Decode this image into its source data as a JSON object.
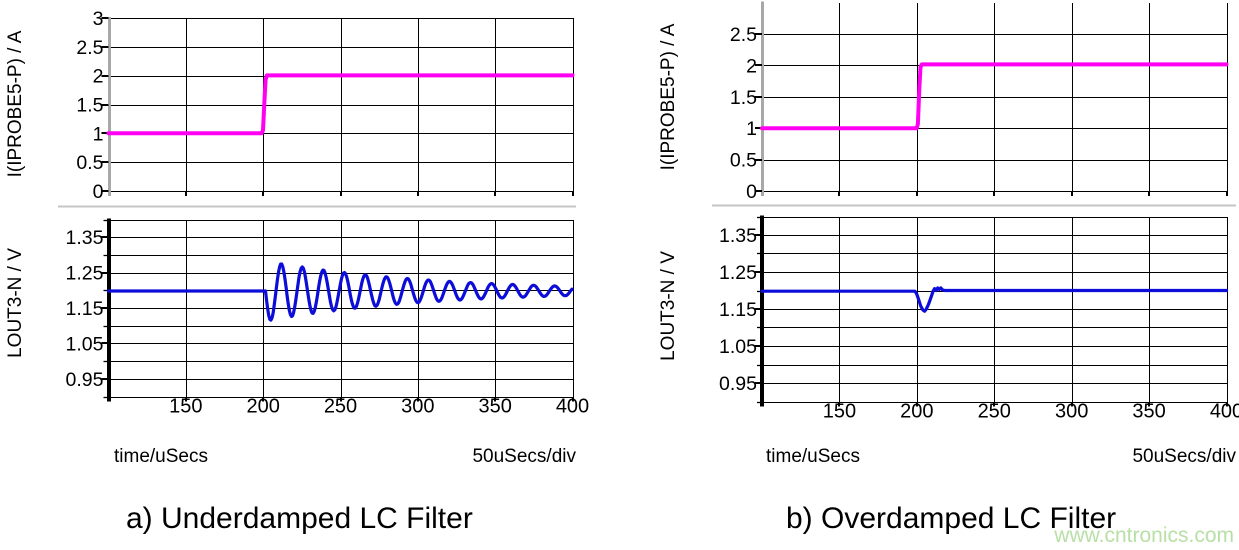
{
  "page": {
    "background": "#ffffff"
  },
  "watermark": {
    "text": "www.cntronics.com",
    "color": "#b8e0a6"
  },
  "chart_data": [
    {
      "id": "underdamped",
      "type": "line",
      "caption": "a) Underdamped LC Filter",
      "x_axis": {
        "label": "time/uSecs",
        "div_label": "50uSecs/div",
        "range": [
          100,
          400
        ],
        "ticks": [
          150,
          200,
          250,
          300,
          350,
          400
        ],
        "units_per_div": "50uSecs"
      },
      "panes": [
        {
          "ylabel": "I(IPROBE5-P) / A",
          "y_range": [
            0,
            3
          ],
          "y_grid_values": [
            0,
            0.5,
            1,
            1.5,
            2,
            2.5,
            3
          ],
          "y_labeled_ticks": [
            [
              3,
              "3"
            ],
            [
              2.5,
              "2.5"
            ],
            [
              2,
              "2"
            ],
            [
              1.5,
              "1.5"
            ],
            [
              1,
              "1"
            ],
            [
              0.5,
              "0.5"
            ],
            [
              0,
              "0"
            ]
          ],
          "series": [
            {
              "name": "I(IPROBE5-P)",
              "color": "#ff00f2",
              "type": "piecewise",
              "points": [
                [
                  100,
                  1
                ],
                [
                  199,
                  1
                ],
                [
                  199.9,
                  1.05
                ],
                [
                  200.8,
                  1.55
                ],
                [
                  201.6,
                  1.93
                ],
                [
                  202.4,
                  2.005
                ],
                [
                  400,
                  2.005
                ]
              ]
            }
          ]
        },
        {
          "ylabel": "LOUT3-N / V",
          "y_range": [
            0.9,
            1.4
          ],
          "y_grid_values": [
            0.9,
            0.95,
            1.0,
            1.05,
            1.1,
            1.15,
            1.2,
            1.25,
            1.3,
            1.35,
            1.4
          ],
          "y_labeled_ticks": [
            [
              1.35,
              "1.35"
            ],
            [
              1.25,
              "1.25"
            ],
            [
              1.15,
              "1.15"
            ],
            [
              1.05,
              "1.05"
            ],
            [
              0.95,
              "0.95"
            ]
          ],
          "series": [
            {
              "name": "LOUT3-N",
              "color": "#0d0dda",
              "type": "damped_sine",
              "baseline": 1.198,
              "step_time": 201.5,
              "amplitude": 0.085,
              "period": 13.6,
              "decay_tau": 105,
              "range": [
                100,
                400
              ]
            }
          ]
        }
      ]
    },
    {
      "id": "overdamped",
      "type": "line",
      "caption": "b) Overdamped LC Filter",
      "x_axis": {
        "label": "time/uSecs",
        "div_label": "50uSecs/div",
        "range": [
          100,
          400
        ],
        "ticks": [
          150,
          200,
          250,
          300,
          350,
          400
        ],
        "units_per_div": "50uSecs"
      },
      "panes": [
        {
          "ylabel": "I(IPROBE5-P) / A",
          "y_range": [
            0,
            3
          ],
          "y_grid_values": [
            0,
            0.5,
            1,
            1.5,
            2,
            2.5
          ],
          "y_labeled_ticks": [
            [
              2.5,
              "2.5"
            ],
            [
              2,
              "2"
            ],
            [
              1.5,
              "1.5"
            ],
            [
              1,
              "1"
            ],
            [
              0.5,
              "0.5"
            ],
            [
              0,
              "0"
            ]
          ],
          "series": [
            {
              "name": "I(IPROBE5-P)",
              "color": "#ff00f2",
              "type": "piecewise",
              "points": [
                [
                  100,
                  1
                ],
                [
                  200,
                  1
                ],
                [
                  200.7,
                  1.07
                ],
                [
                  201.6,
                  1.62
                ],
                [
                  202.4,
                  1.97
                ],
                [
                  203.2,
                  2.015
                ],
                [
                  400,
                  2.015
                ]
              ]
            }
          ]
        },
        {
          "ylabel": "LOUT3-N / V",
          "y_range": [
            0.9,
            1.4
          ],
          "y_grid_values": [
            0.9,
            0.95,
            1.0,
            1.05,
            1.1,
            1.15,
            1.2,
            1.25,
            1.3,
            1.35,
            1.4
          ],
          "y_labeled_ticks": [
            [
              1.35,
              "1.35"
            ],
            [
              1.25,
              "1.25"
            ],
            [
              1.15,
              "1.15"
            ],
            [
              1.05,
              "1.05"
            ],
            [
              0.95,
              "0.95"
            ]
          ],
          "series": [
            {
              "name": "LOUT3-N",
              "color": "#0d0dda",
              "type": "piecewise",
              "points": [
                [
                  100,
                  1.198
                ],
                [
                  198.8,
                  1.198
                ],
                [
                  200,
                  1.19
                ],
                [
                  201.2,
                  1.175
                ],
                [
                  202.5,
                  1.158
                ],
                [
                  204,
                  1.147
                ],
                [
                  205,
                  1.144
                ],
                [
                  206,
                  1.149
                ],
                [
                  207.5,
                  1.162
                ],
                [
                  209,
                  1.18
                ],
                [
                  210.5,
                  1.198
                ],
                [
                  211.5,
                  1.205
                ],
                [
                  212.5,
                  1.2
                ],
                [
                  213.5,
                  1.207
                ],
                [
                  214.5,
                  1.203
                ],
                [
                  215.5,
                  1.207
                ],
                [
                  216.5,
                  1.202
                ],
                [
                  218,
                  1.2
                ],
                [
                  400,
                  1.2
                ]
              ]
            }
          ]
        }
      ]
    }
  ]
}
